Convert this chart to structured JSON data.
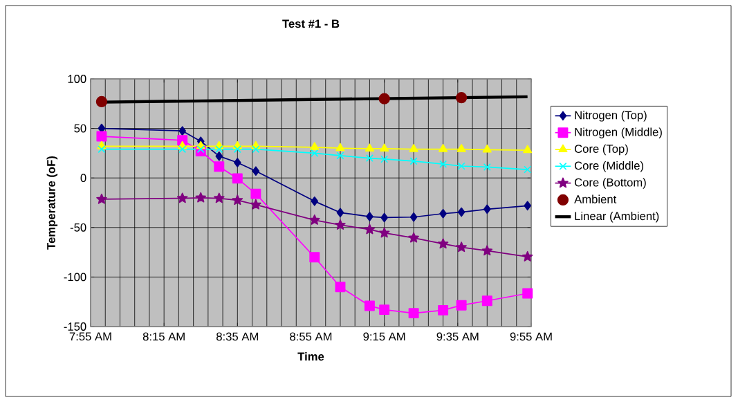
{
  "chart_data": {
    "type": "line",
    "title": "Test #1 - B",
    "xlabel": "Time",
    "ylabel": "Temperature (oF)",
    "x": [
      7.9667,
      8.3333,
      8.4167,
      8.5,
      8.5833,
      8.6667,
      8.9333,
      9.05,
      9.1833,
      9.25,
      9.3833,
      9.5167,
      9.6,
      9.7167,
      9.9
    ],
    "series": [
      {
        "name": "Nitrogen (Top)",
        "color": "#000080",
        "marker": "diamond",
        "values": [
          50,
          47.5,
          37,
          22,
          15.5,
          7,
          -23.5,
          -35,
          -39,
          -40,
          -39.5,
          -36,
          -34.5,
          -31.5,
          -28
        ]
      },
      {
        "name": "Nitrogen (Middle)",
        "color": "#ff00ff",
        "marker": "square",
        "values": [
          42,
          38,
          27,
          11.5,
          -0.5,
          -16,
          -80,
          -110,
          -129,
          -133,
          -136.5,
          -133.5,
          -128.5,
          -124,
          -116.5
        ]
      },
      {
        "name": "Core (Top)",
        "color": "#ffff00",
        "marker": "triangle",
        "values": [
          32,
          32,
          32,
          32,
          32,
          32,
          31,
          30,
          29.5,
          29.5,
          29,
          29,
          29,
          28.5,
          28
        ]
      },
      {
        "name": "Core (Middle)",
        "color": "#00ffff",
        "marker": "cross",
        "values": [
          29,
          29,
          29,
          29,
          29,
          29,
          25,
          22.5,
          20,
          19,
          17,
          14,
          12,
          11,
          8.5
        ]
      },
      {
        "name": "Core (Bottom)",
        "color": "#800080",
        "marker": "star",
        "values": [
          -21.5,
          -20.5,
          -20,
          -20.5,
          -22.5,
          -27,
          -42.5,
          -47.5,
          -52,
          -55.5,
          -60.5,
          -66.5,
          -70,
          -73.5,
          -79.5
        ]
      },
      {
        "name": "Ambient",
        "color": "#800000",
        "marker": "circle",
        "type": "scatter",
        "x": [
          7.9667,
          9.25,
          9.6
        ],
        "values": [
          77,
          80,
          81
        ]
      },
      {
        "name": "Linear (Ambient)",
        "color": "#000000",
        "marker": "none",
        "x": [
          7.9667,
          9.9
        ],
        "values": [
          76.5,
          82
        ]
      }
    ],
    "xlim": [
      7.9167,
      9.9167
    ],
    "xticks": [
      {
        "value": 7.9167,
        "label": "7:55 AM"
      },
      {
        "value": 8.25,
        "label": "8:15 AM"
      },
      {
        "value": 8.5833,
        "label": "8:35 AM"
      },
      {
        "value": 8.9167,
        "label": "8:55 AM"
      },
      {
        "value": 9.25,
        "label": "9:15 AM"
      },
      {
        "value": 9.5833,
        "label": "9:35 AM"
      },
      {
        "value": 9.9167,
        "label": "9:55 AM"
      }
    ],
    "ylim": [
      -150,
      100
    ],
    "yticks": [
      -150,
      -100,
      -50,
      0,
      50,
      100
    ],
    "grid": true,
    "legend": "right"
  }
}
